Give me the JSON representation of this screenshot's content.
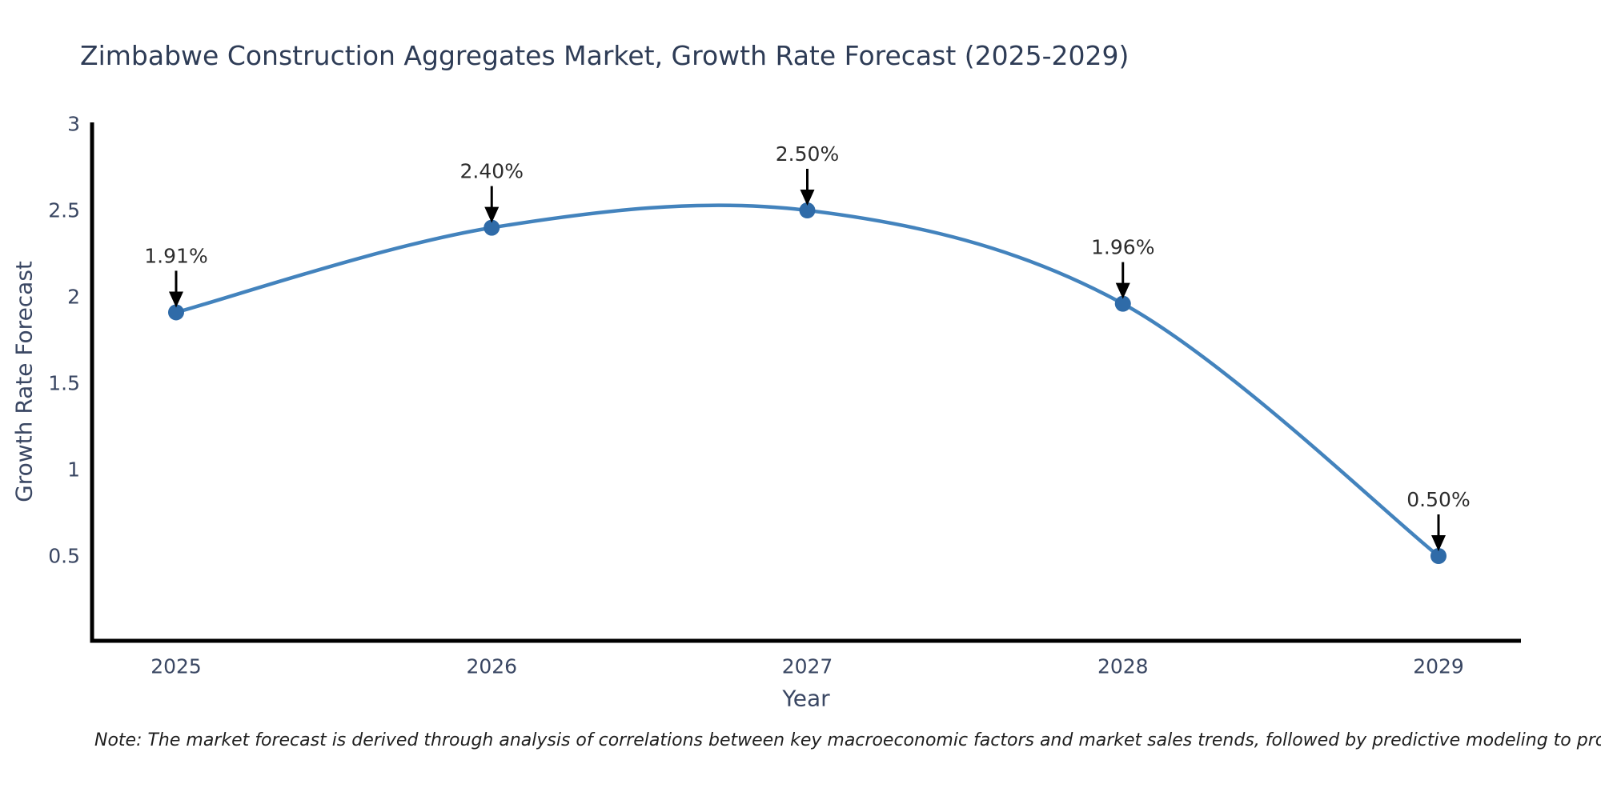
{
  "title": "Zimbabwe Construction Aggregates Market, Growth Rate Forecast (2025-2029)",
  "note": "Note: The market forecast is derived through analysis of correlations between key macroeconomic factors and market sales trends, followed by predictive modeling to project future sales",
  "chart_data": {
    "type": "line",
    "title": "Zimbabwe Construction Aggregates Market, Growth Rate Forecast (2025-2029)",
    "xlabel": "Year",
    "ylabel": "Growth Rate Forecast",
    "x": [
      2025,
      2026,
      2027,
      2028,
      2029
    ],
    "values": [
      1.91,
      2.4,
      2.5,
      1.96,
      0.5
    ],
    "point_labels": [
      "1.91%",
      "2.40%",
      "2.50%",
      "1.96%",
      "0.50%"
    ],
    "xtick_labels": [
      "2025",
      "2026",
      "2027",
      "2028",
      "2029"
    ],
    "yticks": [
      3,
      2.5,
      2,
      1.5,
      1,
      0.5
    ],
    "ytick_labels": [
      "3",
      "2.5",
      "2",
      "1.5",
      "1",
      "0.5"
    ],
    "ylim": [
      0,
      3
    ],
    "grid": false,
    "legend_position": "none",
    "colors": {
      "line": "#4383bd",
      "marker": "#2f6ba8",
      "axis": "#000000",
      "arrow": "#000000",
      "annotation_text": "#2d2d2d",
      "tick_text": "#3a4763",
      "title_text": "#2e3c56",
      "background": "#ffffff"
    }
  }
}
